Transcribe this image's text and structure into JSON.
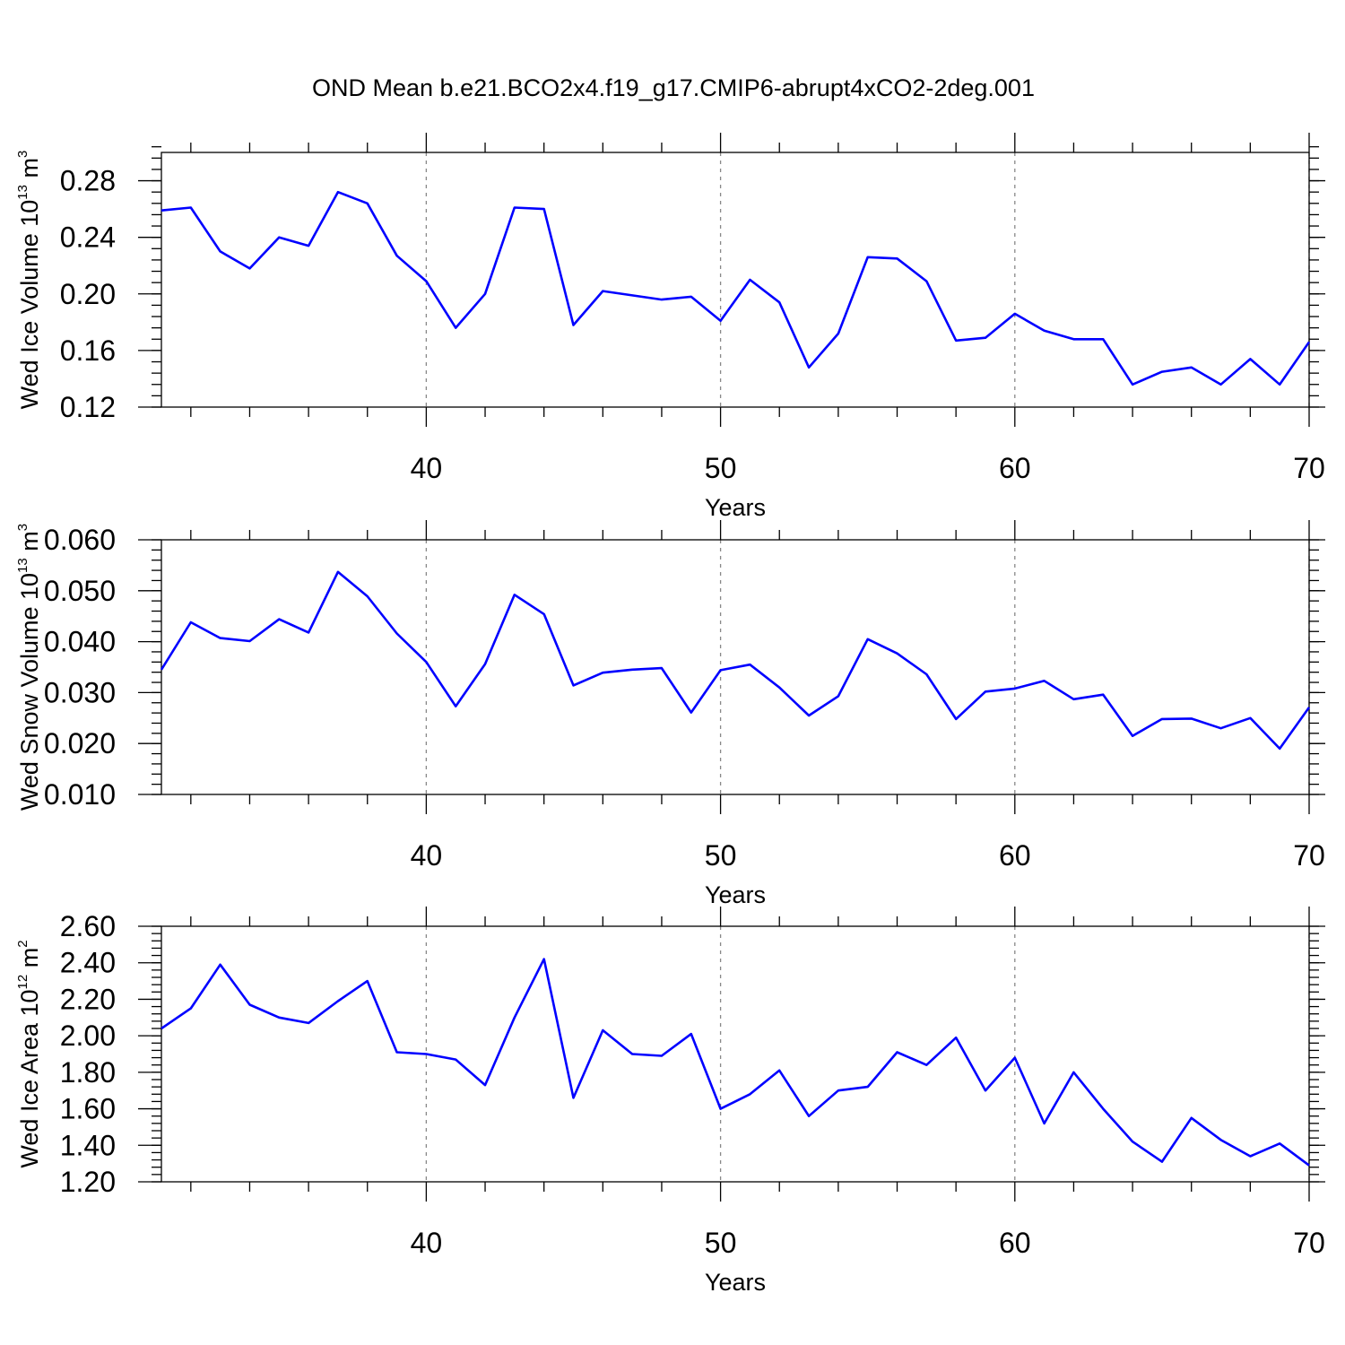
{
  "title": "OND Mean b.e21.BCO2x4.f19_g17.CMIP6-abrupt4xCO2-2deg.001",
  "chart_data": [
    {
      "type": "line",
      "xlabel": "Years",
      "ylabel": {
        "text": "Wed Ice Volume 10",
        "exp": "13",
        "unit": " m",
        "unit_exp": "3"
      },
      "xlim": [
        31,
        70
      ],
      "ylim": [
        0.12,
        0.3
      ],
      "xticks": [
        40,
        50,
        60,
        70
      ],
      "xtick_labels": [
        "40",
        "50",
        "60",
        "70"
      ],
      "yticks": [
        0.12,
        0.16,
        0.2,
        0.24,
        0.28
      ],
      "ytick_labels": [
        "0.12",
        "0.16",
        "0.20",
        "0.24",
        "0.28"
      ],
      "yminor_step": 0.008,
      "grid": "dashed vertical at major x ticks",
      "color": "#0000ff",
      "x": [
        31,
        32,
        33,
        34,
        35,
        36,
        37,
        38,
        39,
        40,
        41,
        42,
        43,
        44,
        45,
        46,
        47,
        48,
        49,
        50,
        51,
        52,
        53,
        54,
        55,
        56,
        57,
        58,
        59,
        60,
        61,
        62,
        63,
        64,
        65,
        66,
        67,
        68,
        69,
        70
      ],
      "y": [
        0.259,
        0.261,
        0.23,
        0.218,
        0.24,
        0.234,
        0.272,
        0.264,
        0.227,
        0.209,
        0.176,
        0.2,
        0.261,
        0.26,
        0.178,
        0.202,
        0.199,
        0.196,
        0.198,
        0.181,
        0.21,
        0.194,
        0.148,
        0.172,
        0.226,
        0.225,
        0.209,
        0.167,
        0.169,
        0.186,
        0.174,
        0.168,
        0.168,
        0.136,
        0.145,
        0.148,
        0.136,
        0.154,
        0.136,
        0.166
      ]
    },
    {
      "type": "line",
      "xlabel": "Years",
      "ylabel": {
        "text": "Wed Snow Volume 10",
        "exp": "13",
        "unit": " m",
        "unit_exp": "3"
      },
      "xlim": [
        31,
        70
      ],
      "ylim": [
        0.01,
        0.06
      ],
      "xticks": [
        40,
        50,
        60,
        70
      ],
      "xtick_labels": [
        "40",
        "50",
        "60",
        "70"
      ],
      "yticks": [
        0.01,
        0.02,
        0.03,
        0.04,
        0.05,
        0.06
      ],
      "ytick_labels": [
        "0.010",
        "0.020",
        "0.030",
        "0.040",
        "0.050",
        "0.060"
      ],
      "yminor_step": 0.002,
      "grid": "dashed vertical at major x ticks",
      "color": "#0000ff",
      "x": [
        31,
        32,
        33,
        34,
        35,
        36,
        37,
        38,
        39,
        40,
        41,
        42,
        43,
        44,
        45,
        46,
        47,
        48,
        49,
        50,
        51,
        52,
        53,
        54,
        55,
        56,
        57,
        58,
        59,
        60,
        61,
        62,
        63,
        64,
        65,
        66,
        67,
        68,
        69,
        70
      ],
      "y": [
        0.0345,
        0.0438,
        0.0407,
        0.0401,
        0.0444,
        0.0418,
        0.0537,
        0.0489,
        0.0416,
        0.036,
        0.0273,
        0.0356,
        0.0492,
        0.0454,
        0.0314,
        0.0339,
        0.0345,
        0.0348,
        0.0261,
        0.0344,
        0.0355,
        0.031,
        0.0255,
        0.0293,
        0.0405,
        0.0377,
        0.0336,
        0.0248,
        0.0302,
        0.0308,
        0.0323,
        0.0287,
        0.0296,
        0.0215,
        0.0248,
        0.0249,
        0.023,
        0.025,
        0.019,
        0.0271
      ]
    },
    {
      "type": "line",
      "xlabel": "Years",
      "ylabel": {
        "text": "Wed Ice Area 10",
        "exp": "12",
        "unit": " m",
        "unit_exp": "2"
      },
      "xlim": [
        31,
        70
      ],
      "ylim": [
        1.2,
        2.6
      ],
      "xticks": [
        40,
        50,
        60,
        70
      ],
      "xtick_labels": [
        "40",
        "50",
        "60",
        "70"
      ],
      "yticks": [
        1.2,
        1.4,
        1.6,
        1.8,
        2.0,
        2.2,
        2.4,
        2.6
      ],
      "ytick_labels": [
        "1.20",
        "1.40",
        "1.60",
        "1.80",
        "2.00",
        "2.20",
        "2.40",
        "2.60"
      ],
      "yminor_step": 0.04,
      "grid": "dashed vertical at major x ticks",
      "color": "#0000ff",
      "x": [
        31,
        32,
        33,
        34,
        35,
        36,
        37,
        38,
        39,
        40,
        41,
        42,
        43,
        44,
        45,
        46,
        47,
        48,
        49,
        50,
        51,
        52,
        53,
        54,
        55,
        56,
        57,
        58,
        59,
        60,
        61,
        62,
        63,
        64,
        65,
        66,
        67,
        68,
        69,
        70
      ],
      "y": [
        2.04,
        2.15,
        2.39,
        2.17,
        2.1,
        2.07,
        2.19,
        2.3,
        1.91,
        1.9,
        1.87,
        1.73,
        2.1,
        2.42,
        1.66,
        2.03,
        1.9,
        1.89,
        2.01,
        1.6,
        1.68,
        1.81,
        1.56,
        1.7,
        1.72,
        1.91,
        1.84,
        1.99,
        1.7,
        1.88,
        1.52,
        1.8,
        1.6,
        1.42,
        1.31,
        1.55,
        1.43,
        1.34,
        1.41,
        1.29
      ]
    }
  ]
}
